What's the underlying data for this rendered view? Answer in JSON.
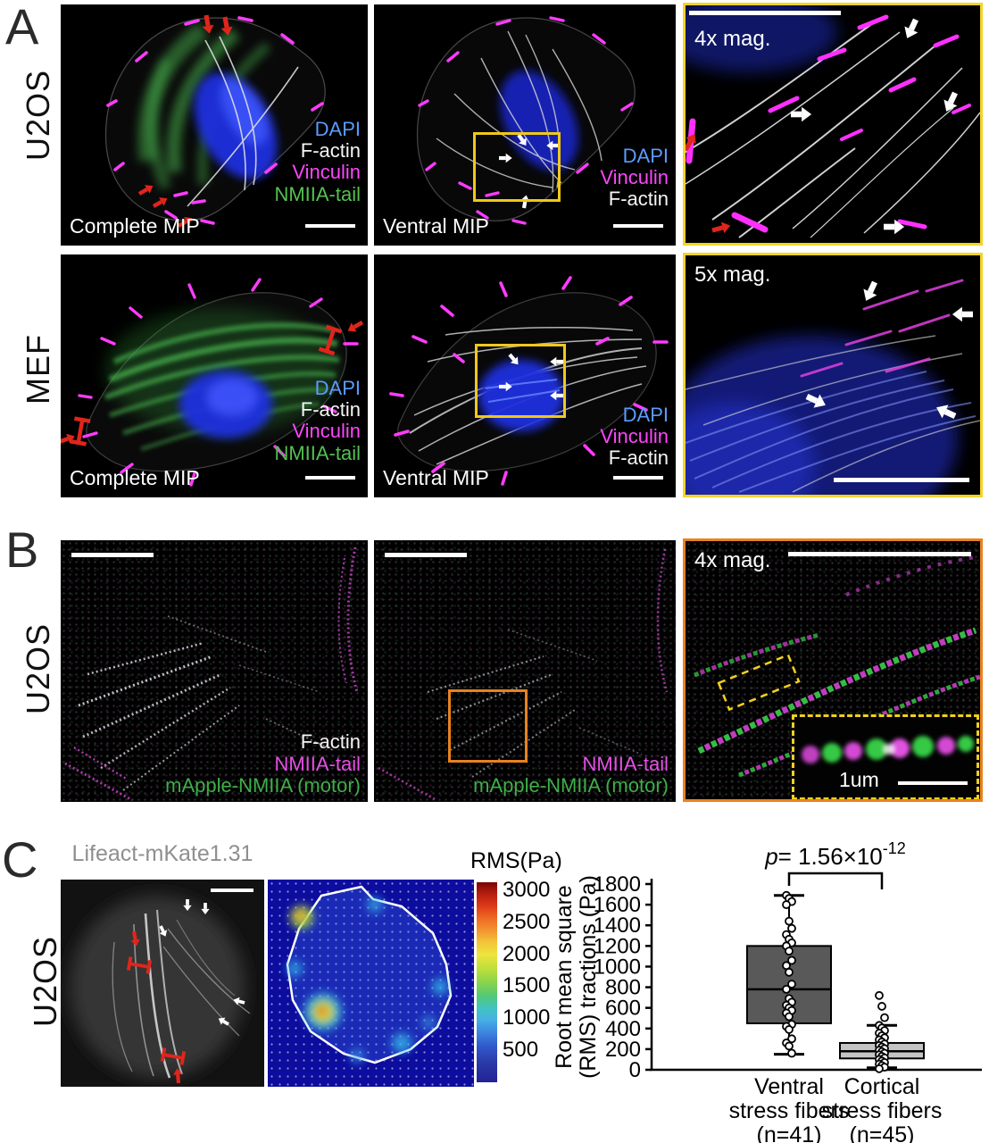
{
  "figure": {
    "A": {
      "letter": "A",
      "rows": [
        {
          "row_label": "U2OS",
          "complete": {
            "caption": "Complete MIP",
            "legend": [
              {
                "label": "DAPI",
                "color": "#5b9bff"
              },
              {
                "label": "F-actin",
                "color": "#f5f5f5"
              },
              {
                "label": "Vinculin",
                "color": "#ff45ff"
              },
              {
                "label": "NMIIA-tail",
                "color": "#53c14f"
              }
            ]
          },
          "ventral": {
            "caption": "Ventral MIP",
            "legend": [
              {
                "label": "DAPI",
                "color": "#5b9bff"
              },
              {
                "label": "Vinculin",
                "color": "#ff45ff"
              },
              {
                "label": "F-actin",
                "color": "#f5f5f5"
              }
            ]
          },
          "mag": {
            "caption": "4x mag."
          }
        },
        {
          "row_label": "MEF",
          "complete": {
            "caption": "Complete MIP",
            "legend": [
              {
                "label": "DAPI",
                "color": "#5b9bff"
              },
              {
                "label": "F-actin",
                "color": "#f5f5f5"
              },
              {
                "label": "Vinculin",
                "color": "#ff45ff"
              },
              {
                "label": "NMIIA-tail",
                "color": "#53c14f"
              }
            ]
          },
          "ventral": {
            "caption": "Ventral MIP",
            "legend": [
              {
                "label": "DAPI",
                "color": "#5b9bff"
              },
              {
                "label": "Vinculin",
                "color": "#ff45ff"
              },
              {
                "label": "F-actin",
                "color": "#f5f5f5"
              }
            ]
          },
          "mag": {
            "caption": "5x mag."
          }
        }
      ]
    },
    "B": {
      "letter": "B",
      "row_label": "U2OS",
      "left": {
        "legend": [
          {
            "label": "F-actin",
            "color": "#f5f5f5"
          },
          {
            "label": "NMIIA-tail",
            "color": "#e54fe5"
          },
          {
            "label": "mApple-NMIIA (motor)",
            "color": "#3fae49"
          }
        ]
      },
      "middle": {
        "legend": [
          {
            "label": "NMIIA-tail",
            "color": "#e54fe5"
          },
          {
            "label": "mApple-NMIIA (motor)",
            "color": "#3fae49"
          }
        ]
      },
      "mag": {
        "caption": "4x mag.",
        "inset_scale_label": "1um"
      }
    },
    "C": {
      "letter": "C",
      "row_label": "U2OS",
      "image_title": "Lifeact-mKate1.31",
      "colorbar": {
        "title": "RMS(Pa)",
        "ticks": [
          "3000",
          "2500",
          "2000",
          "1500",
          "1000",
          "500"
        ]
      }
    },
    "colors": {
      "roi_yellow": "#f0c818",
      "magnified_border_yellow": "#f5d327",
      "roi_orange": "#e8821e",
      "magnified_border_orange": "#e8821e"
    }
  },
  "chart_data": {
    "type": "box",
    "ylabel_lines": [
      "Root mean square",
      "(RMS) tractions (Pa)"
    ],
    "ylim": [
      0,
      1800
    ],
    "yticks": [
      0,
      200,
      400,
      600,
      800,
      1000,
      1200,
      1400,
      1600,
      1800
    ],
    "grid": false,
    "p_label": {
      "prefix": "p",
      "base": "= 1.56×10",
      "exponent": "-12"
    },
    "categories": [
      {
        "label_lines": [
          "Ventral",
          "stress fibers",
          "(n=41)"
        ],
        "n": 41,
        "fill": "#595959",
        "box": {
          "whisker_low": 150,
          "q1": 450,
          "median": 780,
          "q3": 1200,
          "whisker_high": 1690
        },
        "points": [
          1690,
          1660,
          1630,
          1600,
          1440,
          1370,
          1310,
          1265,
          1230,
          1200,
          1150,
          1060,
          1010,
          945,
          830,
          780,
          690,
          655,
          625,
          600,
          575,
          550,
          515,
          440,
          420,
          390,
          300,
          260,
          230,
          160
        ]
      },
      {
        "label_lines": [
          "Cortical",
          "stress fibers",
          "(n=45)"
        ],
        "n": 45,
        "fill": "#c4c4c4",
        "box": {
          "whisker_low": 20,
          "q1": 110,
          "median": 180,
          "q3": 260,
          "whisker_high": 430
        },
        "points": [
          720,
          615,
          505,
          430,
          405,
          380,
          355,
          330,
          310,
          290,
          270,
          250,
          235,
          220,
          205,
          190,
          175,
          160,
          145,
          130,
          115,
          100,
          85,
          70,
          55,
          40,
          25,
          10
        ]
      }
    ]
  }
}
